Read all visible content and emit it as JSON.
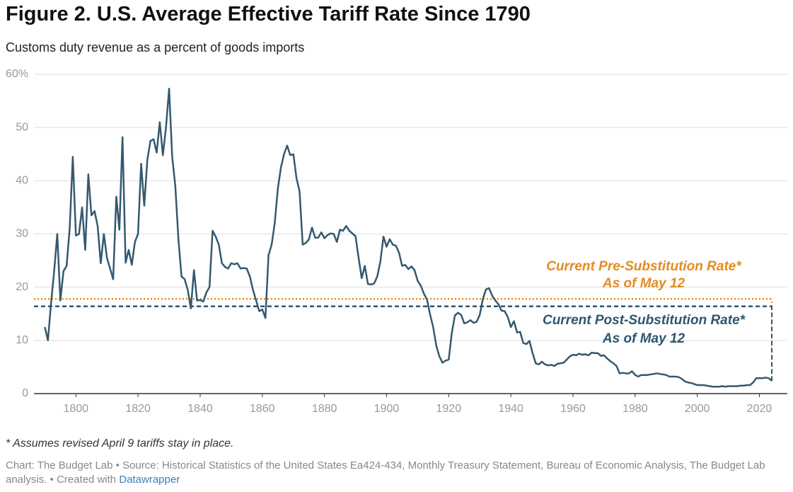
{
  "chart_data": {
    "type": "line",
    "title": "Figure 2. U.S. Average Effective Tariff Rate Since 1790",
    "subtitle": "Customs duty revenue as a percent of goods imports",
    "footnote": "* Assumes revised April 9 tariffs stay in place.",
    "source": "Chart: The Budget Lab • Source: Historical Statistics of the United States Ea424-434, Monthly Treasury Statement, Bureau of Economic Analysis, The Budget Lab analysis. • Created with",
    "credit_link": "Datawrapper",
    "color": "#34596f",
    "grid": true,
    "xlim": [
      1786.5,
      2029
    ],
    "ylim": [
      0,
      60
    ],
    "xticks": [
      1800,
      1820,
      1840,
      1860,
      1880,
      1900,
      1920,
      1940,
      1960,
      1980,
      2000,
      2020
    ],
    "yticks": [
      0,
      10,
      20,
      30,
      40,
      50,
      {
        "value": 60,
        "label": "60%"
      }
    ],
    "reference_lines": [
      {
        "lines": [
          "Current Pre-Substitution Rate*",
          "As of May 12"
        ],
        "value": 17.8,
        "color": "#e38b1f",
        "style": "dotted"
      },
      {
        "lines": [
          "Current Post-Substitution Rate*",
          "As of May 12"
        ],
        "value": 16.4,
        "color": "#2e5670",
        "style": "dashed"
      }
    ],
    "x": [
      1790,
      1791,
      1792,
      1793,
      1794,
      1795,
      1796,
      1797,
      1798,
      1799,
      1800,
      1801,
      1802,
      1803,
      1804,
      1805,
      1806,
      1807,
      1808,
      1809,
      1810,
      1811,
      1812,
      1813,
      1814,
      1815,
      1816,
      1817,
      1818,
      1819,
      1820,
      1821,
      1822,
      1823,
      1824,
      1825,
      1826,
      1827,
      1828,
      1829,
      1830,
      1831,
      1832,
      1833,
      1834,
      1835,
      1836,
      1837,
      1838,
      1839,
      1840,
      1841,
      1842,
      1843,
      1844,
      1845,
      1846,
      1847,
      1848,
      1849,
      1850,
      1851,
      1852,
      1853,
      1854,
      1855,
      1856,
      1857,
      1858,
      1859,
      1860,
      1861,
      1862,
      1863,
      1864,
      1865,
      1866,
      1867,
      1868,
      1869,
      1870,
      1871,
      1872,
      1873,
      1874,
      1875,
      1876,
      1877,
      1878,
      1879,
      1880,
      1881,
      1882,
      1883,
      1884,
      1885,
      1886,
      1887,
      1888,
      1889,
      1890,
      1891,
      1892,
      1893,
      1894,
      1895,
      1896,
      1897,
      1898,
      1899,
      1900,
      1901,
      1902,
      1903,
      1904,
      1905,
      1906,
      1907,
      1908,
      1909,
      1910,
      1911,
      1912,
      1913,
      1914,
      1915,
      1916,
      1917,
      1918,
      1919,
      1920,
      1921,
      1922,
      1923,
      1924,
      1925,
      1926,
      1927,
      1928,
      1929,
      1930,
      1931,
      1932,
      1933,
      1934,
      1935,
      1936,
      1937,
      1938,
      1939,
      1940,
      1941,
      1942,
      1943,
      1944,
      1945,
      1946,
      1947,
      1948,
      1949,
      1950,
      1951,
      1952,
      1953,
      1954,
      1955,
      1956,
      1957,
      1958,
      1959,
      1960,
      1961,
      1962,
      1963,
      1964,
      1965,
      1966,
      1967,
      1968,
      1969,
      1970,
      1971,
      1972,
      1973,
      1974,
      1975,
      1976,
      1977,
      1978,
      1979,
      1980,
      1981,
      1982,
      1983,
      1984,
      1985,
      1986,
      1987,
      1988,
      1989,
      1990,
      1991,
      1992,
      1993,
      1994,
      1995,
      1996,
      1997,
      1998,
      1999,
      2000,
      2001,
      2002,
      2003,
      2004,
      2005,
      2006,
      2007,
      2008,
      2009,
      2010,
      2011,
      2012,
      2013,
      2014,
      2015,
      2016,
      2017,
      2018,
      2019,
      2020,
      2021,
      2022,
      2023,
      2024
    ],
    "values": [
      12.5,
      10,
      17,
      23,
      30,
      17.5,
      23,
      24,
      31,
      44.5,
      29.7,
      30,
      35,
      27,
      41.2,
      33.5,
      34.3,
      31.5,
      24.5,
      30,
      25.5,
      23.5,
      21.5,
      37,
      30.8,
      48.2,
      24.6,
      27,
      24.2,
      28.5,
      30,
      43.2,
      35.3,
      44,
      47.5,
      47.8,
      45.3,
      51,
      44.8,
      50,
      57.3,
      44.5,
      39,
      29,
      22,
      21.5,
      19.5,
      16,
      23.2,
      17.5,
      17.6,
      17.3,
      19,
      20,
      30.6,
      29.5,
      28,
      24.5,
      23.8,
      23.5,
      24.5,
      24.3,
      24.5,
      23.5,
      23.6,
      23.5,
      22,
      19.5,
      17.5,
      15.5,
      15.8,
      14.2,
      26,
      28,
      32,
      38.5,
      42.5,
      45,
      46.6,
      44.8,
      45,
      40.5,
      38,
      28,
      28.3,
      29,
      31.2,
      29.3,
      29.3,
      30.3,
      29.2,
      29.8,
      30.1,
      30,
      28.5,
      30.8,
      30.6,
      31.5,
      30.6,
      30.1,
      29.6,
      25.5,
      21.7,
      24,
      20.6,
      20.5,
      20.7,
      22,
      24.8,
      29.5,
      27.6,
      29,
      28,
      27.8,
      26.5,
      24,
      24.2,
      23.4,
      23.9,
      23.2,
      21.2,
      20.3,
      18.8,
      17.7,
      14.9,
      12.5,
      9,
      7,
      5.8,
      6.2,
      6.4,
      11.4,
      14.7,
      15.2,
      14.8,
      13.2,
      13.4,
      13.8,
      13.3,
      13.5,
      14.8,
      17.8,
      19.6,
      19.8,
      18.4,
      17.5,
      16.8,
      15.6,
      15.5,
      14.4,
      12.5,
      13.6,
      11.5,
      11.6,
      9.5,
      9.3,
      9.9,
      7.6,
      5.7,
      5.5,
      6,
      5.5,
      5.3,
      5.4,
      5.2,
      5.6,
      5.7,
      5.8,
      6.4,
      7,
      7.3,
      7.2,
      7.5,
      7.3,
      7.4,
      7.2,
      7.7,
      7.6,
      7.6,
      7.1,
      7.2,
      6.6,
      6.1,
      5.7,
      5.2,
      3.8,
      3.9,
      3.8,
      3.8,
      4.2,
      3.5,
      3.2,
      3.5,
      3.5,
      3.5,
      3.6,
      3.7,
      3.8,
      3.7,
      3.6,
      3.5,
      3.2,
      3.2,
      3.2,
      3.1,
      2.8,
      2.3,
      2.1,
      2,
      1.8,
      1.6,
      1.6,
      1.6,
      1.5,
      1.4,
      1.3,
      1.3,
      1.3,
      1.4,
      1.3,
      1.4,
      1.4,
      1.4,
      1.4,
      1.5,
      1.5,
      1.6,
      1.6,
      2.1,
      2.9,
      2.9,
      2.9,
      3,
      2.9,
      2.4
    ]
  }
}
